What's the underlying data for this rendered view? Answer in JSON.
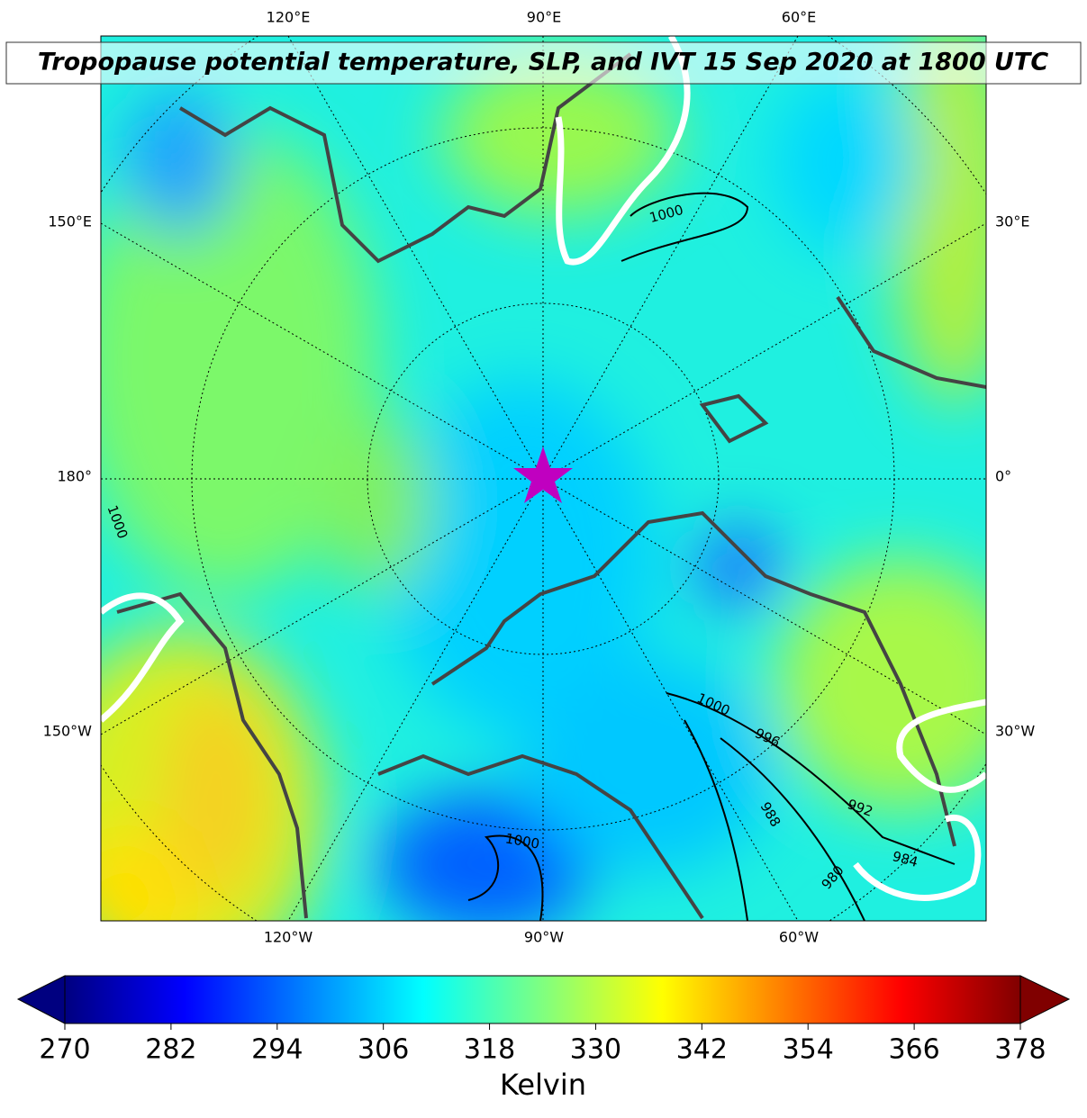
{
  "title": "Tropopause potential temperature, SLP, and IVT 15 Sep 2020 at 1800 UTC",
  "lon_labels": {
    "top": [
      "120°E",
      "90°E",
      "60°E"
    ],
    "bottom": [
      "120°W",
      "90°W",
      "60°W"
    ],
    "left": [
      "150°E",
      "180°",
      "150°W"
    ],
    "right": [
      "30°E",
      "0°",
      "30°W"
    ]
  },
  "contour_labels": [
    "1000",
    "1000",
    "996",
    "992",
    "988",
    "984",
    "980",
    "1000",
    "1000"
  ],
  "colorbar": {
    "label": "Kelvin",
    "lim": [
      270,
      378
    ],
    "ticks": [
      270,
      282,
      294,
      306,
      318,
      330,
      342,
      354,
      366,
      378
    ]
  }
}
